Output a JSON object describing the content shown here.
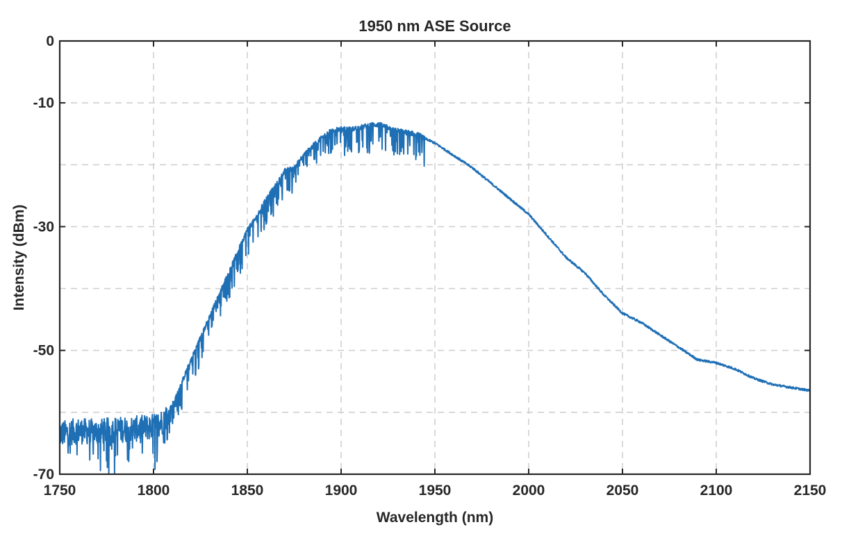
{
  "chart_data": {
    "type": "line",
    "title": "1950 nm ASE Source",
    "xlabel": "Wavelength (nm)",
    "ylabel": "Intensity (dBm)",
    "xlim": [
      1750,
      2150
    ],
    "ylim": [
      -70,
      0
    ],
    "x_ticks": [
      1750,
      1800,
      1850,
      1900,
      1950,
      2000,
      2050,
      2100,
      2150
    ],
    "x_tick_labels": [
      "1750",
      "1800",
      "1850",
      "1900",
      "1950",
      "2000",
      "2050",
      "2100",
      "2150"
    ],
    "y_ticks": [
      0,
      -10,
      -30,
      -50,
      -70
    ],
    "y_tick_labels": [
      "0",
      "-10",
      "-30",
      "-50",
      "-70"
    ],
    "grid_x": [
      1800,
      1850,
      1900,
      1950,
      2000,
      2050,
      2100
    ],
    "grid_y": [
      -10,
      -20,
      -30,
      -40,
      -50,
      -60
    ],
    "grid": true,
    "legend": false,
    "line_color": "#1f6fb5",
    "series": [
      {
        "x": [
          1750,
          1760,
          1770,
          1780,
          1790,
          1800,
          1805,
          1808,
          1812,
          1816,
          1820,
          1825,
          1830,
          1835,
          1840,
          1845,
          1850,
          1855,
          1860,
          1865,
          1870,
          1875,
          1880,
          1885,
          1890,
          1895,
          1900,
          1905,
          1910,
          1915,
          1920,
          1925,
          1930,
          1935,
          1940,
          1945,
          1950,
          1960,
          1970,
          1980,
          1990,
          2000,
          2010,
          2020,
          2030,
          2040,
          2050,
          2060,
          2070,
          2080,
          2090,
          2100,
          2105,
          2110,
          2120,
          2130,
          2140,
          2150
        ],
        "y": [
          -63.5,
          -63.0,
          -63.2,
          -62.8,
          -62.7,
          -62.3,
          -61.5,
          -60.0,
          -57.5,
          -54.5,
          -51.5,
          -48.0,
          -44.5,
          -41.0,
          -37.5,
          -34.0,
          -30.5,
          -28.5,
          -25.5,
          -23.5,
          -21.0,
          -20.5,
          -18.5,
          -17.0,
          -15.5,
          -14.5,
          -14.2,
          -14.3,
          -14.0,
          -13.6,
          -13.5,
          -14.0,
          -14.5,
          -14.8,
          -15.0,
          -15.8,
          -16.5,
          -18.5,
          -20.5,
          -23.0,
          -25.5,
          -28.0,
          -31.5,
          -35.0,
          -37.5,
          -41.0,
          -44.0,
          -45.5,
          -47.5,
          -49.5,
          -51.5,
          -52.0,
          -52.5,
          -53.0,
          -54.5,
          -55.5,
          -56.0,
          -56.5
        ]
      }
    ]
  }
}
